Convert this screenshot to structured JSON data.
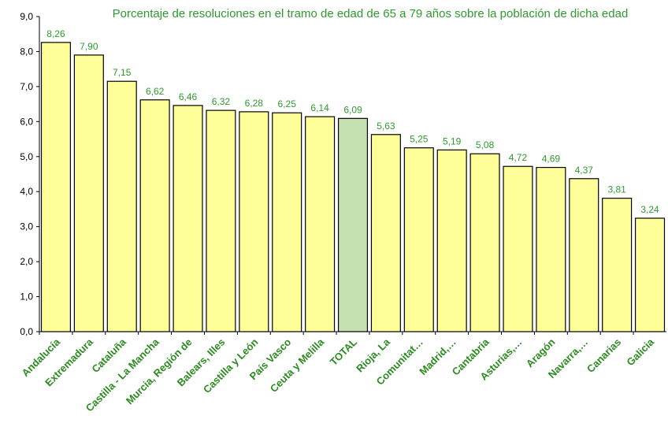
{
  "chart_data": {
    "type": "bar",
    "title": "Porcentaje de resoluciones en el tramo de edad de 65 a 79 años sobre la población de dicha edad",
    "categories": [
      "Andalucía",
      "Extremadura",
      "Cataluña",
      "Castilla - La Mancha",
      "Murcia, Región de",
      "Balears, Illes",
      "Castilla y León",
      "País Vasco",
      "Ceuta y Melilla",
      "TOTAL",
      "Rioja, La",
      "Comunitat…",
      "Madrid,…",
      "Cantabria",
      "Asturias,…",
      "Aragón",
      "Navarra,…",
      "Canarias",
      "Galicia"
    ],
    "values": [
      8.26,
      7.9,
      7.15,
      6.62,
      6.46,
      6.32,
      6.28,
      6.25,
      6.14,
      6.09,
      5.63,
      5.25,
      5.19,
      5.08,
      4.72,
      4.69,
      4.37,
      3.81,
      3.24
    ],
    "value_labels": [
      "8,26",
      "7,90",
      "7,15",
      "6,62",
      "6,46",
      "6,32",
      "6,28",
      "6,25",
      "6,14",
      "6,09",
      "5,63",
      "5,25",
      "5,19",
      "5,08",
      "4,72",
      "4,69",
      "4,37",
      "3,81",
      "3,24"
    ],
    "colors": [
      "#ffff99",
      "#ffff99",
      "#ffff99",
      "#ffff99",
      "#ffff99",
      "#ffff99",
      "#ffff99",
      "#ffff99",
      "#ffff99",
      "#c4dfb0",
      "#ffff99",
      "#ffff99",
      "#ffff99",
      "#ffff99",
      "#ffff99",
      "#ffff99",
      "#ffff99",
      "#ffff99",
      "#ffff99"
    ],
    "ylim": [
      0,
      9
    ],
    "yticks": [
      {
        "value": 0,
        "label": "0,0"
      },
      {
        "value": 1,
        "label": "1,0"
      },
      {
        "value": 2,
        "label": "2,0"
      },
      {
        "value": 3,
        "label": "3,0"
      },
      {
        "value": 4,
        "label": "4,0"
      },
      {
        "value": 5,
        "label": "5,0"
      },
      {
        "value": 6,
        "label": "6,0"
      },
      {
        "value": 7,
        "label": "7,0"
      },
      {
        "value": 8,
        "label": "8,0"
      },
      {
        "value": 9,
        "label": "9,0"
      }
    ],
    "grid": false
  }
}
